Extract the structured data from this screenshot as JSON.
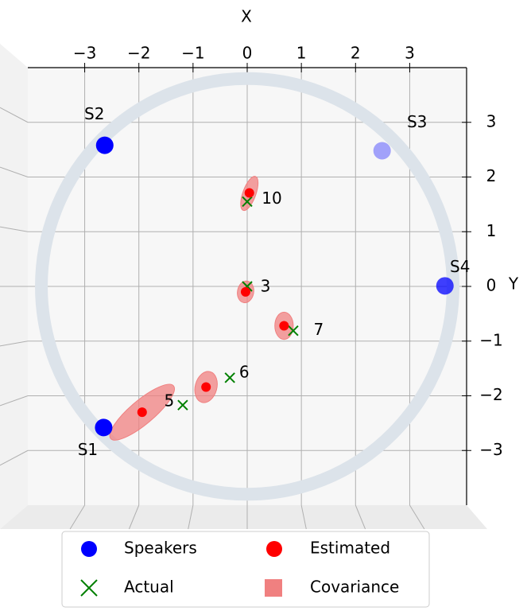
{
  "chart_data": {
    "type": "scatter",
    "xlabel": "X",
    "ylabel": "Y",
    "xlim": [
      -4.05,
      4.05
    ],
    "ylim": [
      -4,
      4
    ],
    "xticks": [
      {
        "value": -3,
        "label": "−3"
      },
      {
        "value": -2,
        "label": "−2"
      },
      {
        "value": -1,
        "label": "−1"
      },
      0,
      1,
      2,
      3
    ],
    "yticks": [
      {
        "value": -3,
        "label": "−3"
      },
      {
        "value": -2,
        "label": "−2"
      },
      {
        "value": -1,
        "label": "−1"
      },
      0,
      1,
      2,
      3
    ],
    "grid": true,
    "circle_radius": 3.8,
    "series": [
      {
        "name": "Speakers",
        "color": "#0000ff",
        "marker": "o",
        "x": [
          -2.65,
          -2.63,
          2.49,
          3.65
        ],
        "y": [
          -2.58,
          2.58,
          2.48,
          0.01
        ],
        "labels": [
          "S1",
          "S2",
          "S3",
          "S4"
        ],
        "alphas": [
          1,
          1,
          0.35,
          0.75
        ]
      },
      {
        "name": "Estimated",
        "color": "#ff0000",
        "marker": "o",
        "x": [
          0.04,
          -0.03,
          0.68,
          -0.76,
          -1.94
        ],
        "y": [
          1.71,
          -0.1,
          -0.72,
          -1.84,
          -2.3
        ]
      },
      {
        "name": "Actual",
        "color": "#008000",
        "marker": "x",
        "x": [
          0,
          0,
          0.85,
          -0.32,
          -1.19
        ],
        "y": [
          1.55,
          0,
          -0.81,
          -1.67,
          -2.17
        ],
        "labels": [
          "10",
          "3",
          "7",
          "6",
          "5"
        ]
      },
      {
        "name": "Covariance",
        "color": "#f08080",
        "marker": "s",
        "x": [
          0.04,
          -0.03,
          0.68,
          -0.76,
          -1.94
        ],
        "y": [
          1.7,
          -0.1,
          -0.72,
          -1.84,
          -2.3
        ],
        "rx": [
          0.12,
          0.15,
          0.17,
          0.2,
          0.22
        ],
        "ry": [
          0.33,
          0.2,
          0.25,
          0.29,
          0.75
        ],
        "angle": [
          20,
          10,
          0,
          15,
          50
        ]
      }
    ]
  }
}
